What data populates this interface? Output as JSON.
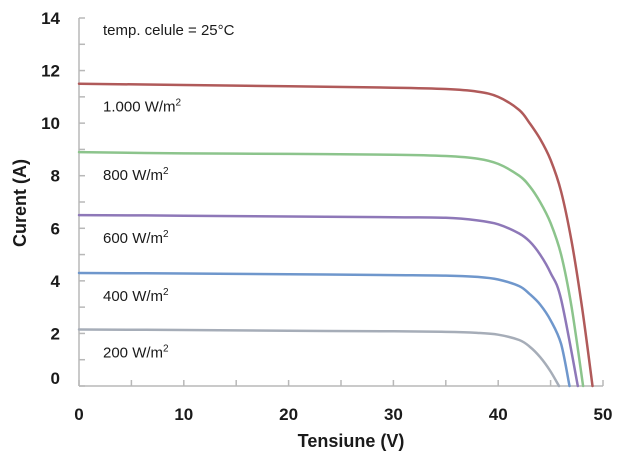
{
  "chart_data": {
    "type": "line",
    "xlabel": "Tensiune (V)",
    "ylabel": "Curent (A)",
    "xlim": [
      0,
      50
    ],
    "ylim": [
      0,
      14
    ],
    "x_ticks": [
      "0",
      "10",
      "20",
      "30",
      "40",
      "50"
    ],
    "y_ticks": [
      "0",
      "2",
      "4",
      "6",
      "8",
      "10",
      "12",
      "14"
    ],
    "grid": false,
    "legend": "none",
    "annotations": [
      {
        "text": "temp. celule = 25°C"
      }
    ],
    "series": [
      {
        "label_main": "1.000 W/m",
        "label_sup": "2",
        "color": "#b05a5a",
        "x": [
          0,
          10,
          20,
          30,
          35,
          38,
          40,
          42,
          43,
          44,
          45,
          46,
          47,
          48,
          49
        ],
        "y": [
          11.5,
          11.45,
          11.4,
          11.35,
          11.3,
          11.2,
          11.0,
          10.5,
          10.0,
          9.4,
          8.6,
          7.4,
          5.5,
          3.0,
          0
        ]
      },
      {
        "label_main": "800 W/m",
        "label_sup": "2",
        "color": "#8cc48c",
        "x": [
          0,
          10,
          20,
          30,
          35,
          38,
          40,
          42,
          43,
          44,
          45,
          46,
          47,
          48.1
        ],
        "y": [
          8.9,
          8.85,
          8.83,
          8.8,
          8.75,
          8.65,
          8.45,
          8.0,
          7.6,
          7.0,
          6.2,
          5.0,
          3.0,
          0
        ]
      },
      {
        "label_main": "600 W/m",
        "label_sup": "2",
        "color": "#8e78b8",
        "x": [
          0,
          10,
          20,
          30,
          35,
          38,
          40,
          42,
          43,
          44,
          45,
          46,
          47.6
        ],
        "y": [
          6.5,
          6.48,
          6.45,
          6.42,
          6.4,
          6.3,
          6.15,
          5.8,
          5.5,
          5.0,
          4.3,
          3.3,
          0
        ]
      },
      {
        "label_main": "400 W/m",
        "label_sup": "2",
        "color": "#6f97cc",
        "x": [
          0,
          10,
          20,
          30,
          35,
          38,
          40,
          42,
          43,
          44,
          45,
          46,
          46.8
        ],
        "y": [
          4.3,
          4.28,
          4.25,
          4.22,
          4.2,
          4.15,
          4.05,
          3.8,
          3.5,
          3.1,
          2.5,
          1.6,
          0
        ]
      },
      {
        "label_main": "200 W/m",
        "label_sup": "2",
        "color": "#a6adb8",
        "x": [
          0,
          10,
          20,
          30,
          35,
          38,
          40,
          42,
          43,
          44,
          45,
          45.8
        ],
        "y": [
          2.15,
          2.13,
          2.1,
          2.08,
          2.06,
          2.02,
          1.95,
          1.75,
          1.5,
          1.1,
          0.55,
          0
        ]
      }
    ]
  }
}
